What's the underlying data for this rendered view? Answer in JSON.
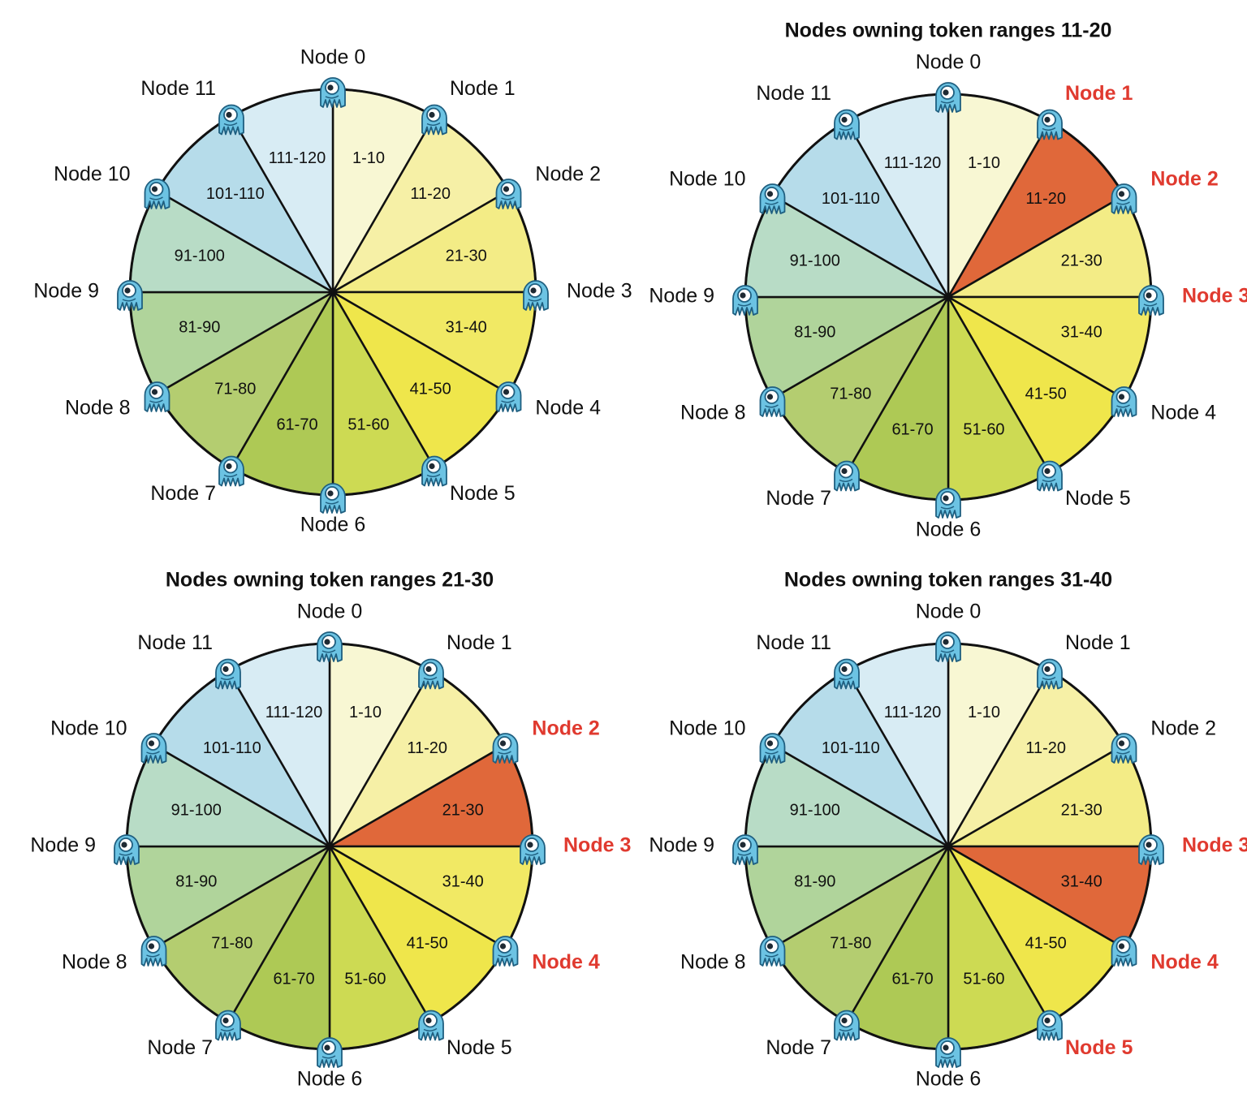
{
  "colors": {
    "highlight_segment": "#e0683a",
    "highlight_label": "#e03a2f",
    "outline": "#111111",
    "mascot_body": "#6cc3e3",
    "mascot_outline": "#1f5f80"
  },
  "icon": "scylla-mascot-icon",
  "segments": [
    {
      "label": "1-10",
      "color": "#f8f7d3"
    },
    {
      "label": "11-20",
      "color": "#f6f0a6"
    },
    {
      "label": "21-30",
      "color": "#f3ec86"
    },
    {
      "label": "31-40",
      "color": "#f1e964"
    },
    {
      "label": "41-50",
      "color": "#efe64b"
    },
    {
      "label": "51-60",
      "color": "#cdda53"
    },
    {
      "label": "61-70",
      "color": "#aec955"
    },
    {
      "label": "71-80",
      "color": "#b4cd70"
    },
    {
      "label": "81-90",
      "color": "#b0d49b"
    },
    {
      "label": "91-100",
      "color": "#b8dcc6"
    },
    {
      "label": "101-110",
      "color": "#b6dcea"
    },
    {
      "label": "111-120",
      "color": "#d8ecf4"
    }
  ],
  "nodes": [
    "Node 0",
    "Node 1",
    "Node 2",
    "Node 3",
    "Node 4",
    "Node 5",
    "Node 6",
    "Node 7",
    "Node 8",
    "Node 9",
    "Node 10",
    "Node 11"
  ],
  "rings": [
    {
      "title": "",
      "highlight_segment": null,
      "highlight_nodes": []
    },
    {
      "title": "Nodes owning token ranges 11-20",
      "highlight_segment": 1,
      "highlight_nodes": [
        1,
        2,
        3
      ]
    },
    {
      "title": "Nodes owning token ranges 21-30",
      "highlight_segment": 2,
      "highlight_nodes": [
        2,
        3,
        4
      ]
    },
    {
      "title": "Nodes owning token ranges 31-40",
      "highlight_segment": 3,
      "highlight_nodes": [
        3,
        4,
        5
      ]
    }
  ]
}
